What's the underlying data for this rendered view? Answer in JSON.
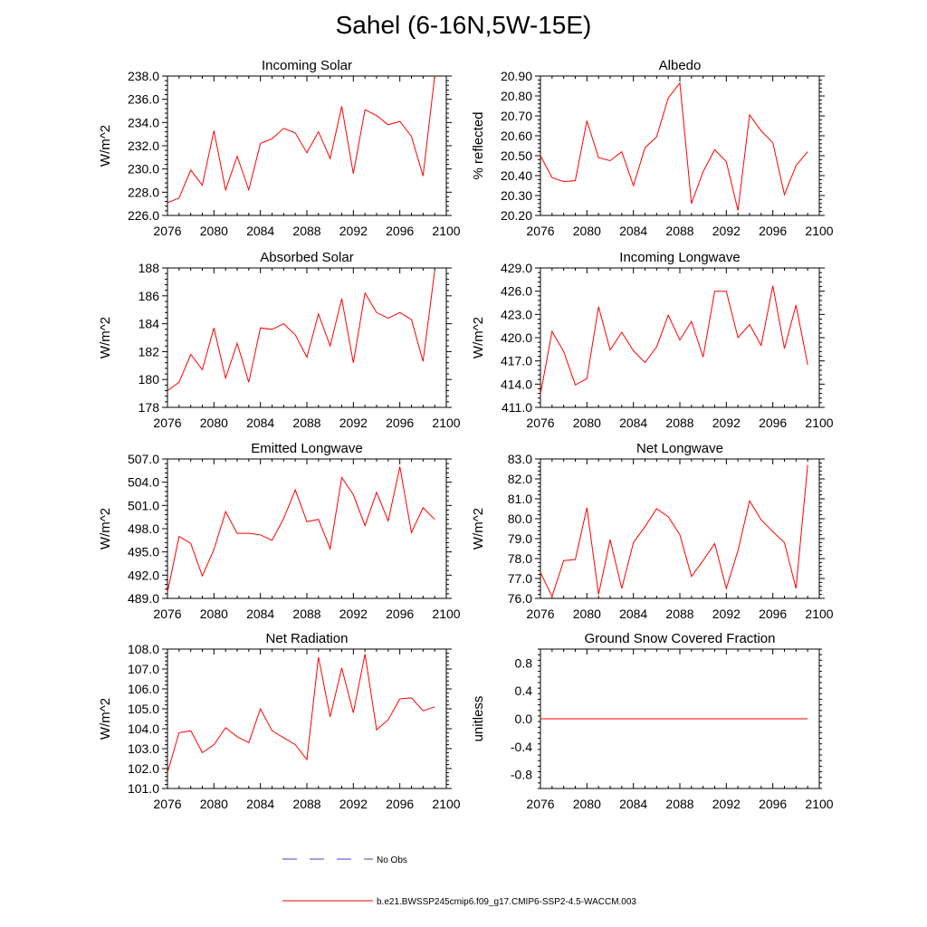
{
  "title": "Sahel (6-16N,5W-15E)",
  "colors": {
    "model_line": "#ff0000",
    "obs_line": "#4040c0",
    "axis": "#000000"
  },
  "legend": {
    "obs_label": "No Obs",
    "model_label": "b.e21.BWSSP245cmip6.f09_g17.CMIP6-SSP2-4.5-WACCM.003"
  },
  "chart_data": [
    {
      "type": "line",
      "title": "Incoming Solar",
      "ylabel": "W/m^2",
      "xlim": [
        2076,
        2100
      ],
      "ylim": [
        226.0,
        238.0
      ],
      "xticks": [
        2076,
        2080,
        2084,
        2088,
        2092,
        2096,
        2100
      ],
      "yticks": [
        226.0,
        228.0,
        230.0,
        232.0,
        234.0,
        236.0,
        238.0
      ],
      "ytick_labels": [
        "226.0",
        "228.0",
        "230.0",
        "232.0",
        "234.0",
        "236.0",
        "238.0"
      ],
      "x": [
        2076,
        2077,
        2078,
        2079,
        2080,
        2081,
        2082,
        2083,
        2084,
        2085,
        2086,
        2087,
        2088,
        2089,
        2090,
        2091,
        2092,
        2093,
        2094,
        2095,
        2096,
        2097,
        2098,
        2099
      ],
      "values": [
        227.1,
        227.5,
        229.9,
        228.6,
        233.3,
        228.2,
        231.1,
        228.2,
        232.2,
        232.6,
        233.5,
        233.1,
        231.4,
        233.2,
        230.9,
        235.4,
        229.6,
        235.1,
        234.6,
        233.8,
        234.1,
        232.8,
        229.4,
        238.0
      ]
    },
    {
      "type": "line",
      "title": "Albedo",
      "ylabel": "% reflected",
      "xlim": [
        2076,
        2100
      ],
      "ylim": [
        20.2,
        20.9
      ],
      "xticks": [
        2076,
        2080,
        2084,
        2088,
        2092,
        2096,
        2100
      ],
      "yticks": [
        20.2,
        20.3,
        20.4,
        20.5,
        20.6,
        20.7,
        20.8,
        20.9
      ],
      "ytick_labels": [
        "20.20",
        "20.30",
        "20.40",
        "20.50",
        "20.60",
        "20.70",
        "20.80",
        "20.90"
      ],
      "x": [
        2076,
        2077,
        2078,
        2079,
        2080,
        2081,
        2082,
        2083,
        2084,
        2085,
        2086,
        2087,
        2088,
        2089,
        2090,
        2091,
        2092,
        2093,
        2094,
        2095,
        2096,
        2097,
        2098,
        2099
      ],
      "values": [
        20.5,
        20.39,
        20.37,
        20.375,
        20.675,
        20.49,
        20.475,
        20.52,
        20.35,
        20.54,
        20.595,
        20.79,
        20.865,
        20.26,
        20.42,
        20.53,
        20.47,
        20.225,
        20.705,
        20.625,
        20.565,
        20.305,
        20.45,
        20.52
      ]
    },
    {
      "type": "line",
      "title": "Absorbed Solar",
      "ylabel": "W/m^2",
      "xlim": [
        2076,
        2100
      ],
      "ylim": [
        178,
        188
      ],
      "xticks": [
        2076,
        2080,
        2084,
        2088,
        2092,
        2096,
        2100
      ],
      "yticks": [
        178,
        180,
        182,
        184,
        186,
        188
      ],
      "ytick_labels": [
        "178",
        "180",
        "182",
        "184",
        "186",
        "188"
      ],
      "x": [
        2076,
        2077,
        2078,
        2079,
        2080,
        2081,
        2082,
        2083,
        2084,
        2085,
        2086,
        2087,
        2088,
        2089,
        2090,
        2091,
        2092,
        2093,
        2094,
        2095,
        2096,
        2097,
        2098,
        2099
      ],
      "values": [
        179.2,
        179.8,
        181.8,
        180.7,
        183.7,
        180.1,
        182.6,
        179.8,
        183.7,
        183.6,
        184.0,
        183.2,
        181.6,
        184.7,
        182.4,
        185.8,
        181.2,
        186.2,
        184.8,
        184.4,
        184.8,
        184.3,
        181.3,
        187.8
      ]
    },
    {
      "type": "line",
      "title": "Incoming Longwave",
      "ylabel": "W/m^2",
      "xlim": [
        2076,
        2100
      ],
      "ylim": [
        411.0,
        429.0
      ],
      "xticks": [
        2076,
        2080,
        2084,
        2088,
        2092,
        2096,
        2100
      ],
      "yticks": [
        411.0,
        414.0,
        417.0,
        420.0,
        423.0,
        426.0,
        429.0
      ],
      "ytick_labels": [
        "411.0",
        "414.0",
        "417.0",
        "420.0",
        "423.0",
        "426.0",
        "429.0"
      ],
      "x": [
        2076,
        2077,
        2078,
        2079,
        2080,
        2081,
        2082,
        2083,
        2084,
        2085,
        2086,
        2087,
        2088,
        2089,
        2090,
        2091,
        2092,
        2093,
        2094,
        2095,
        2096,
        2097,
        2098,
        2099
      ],
      "values": [
        412.7,
        420.8,
        418.2,
        413.9,
        414.7,
        424.0,
        418.4,
        420.7,
        418.3,
        416.8,
        418.8,
        422.9,
        419.7,
        422.1,
        417.5,
        426.0,
        426.0,
        420.0,
        421.7,
        419.0,
        426.7,
        418.6,
        424.2,
        416.5
      ]
    },
    {
      "type": "line",
      "title": "Emitted Longwave",
      "ylabel": "W/m^2",
      "xlim": [
        2076,
        2100
      ],
      "ylim": [
        489.0,
        507.0
      ],
      "xticks": [
        2076,
        2080,
        2084,
        2088,
        2092,
        2096,
        2100
      ],
      "yticks": [
        489.0,
        492.0,
        495.0,
        498.0,
        501.0,
        504.0,
        507.0
      ],
      "ytick_labels": [
        "489.0",
        "492.0",
        "495.0",
        "498.0",
        "501.0",
        "504.0",
        "507.0"
      ],
      "x": [
        2076,
        2077,
        2078,
        2079,
        2080,
        2081,
        2082,
        2083,
        2084,
        2085,
        2086,
        2087,
        2088,
        2089,
        2090,
        2091,
        2092,
        2093,
        2094,
        2095,
        2096,
        2097,
        2098,
        2099
      ],
      "values": [
        489.8,
        497.0,
        496.1,
        491.9,
        495.3,
        500.2,
        497.4,
        497.4,
        497.2,
        496.5,
        499.3,
        503.0,
        498.9,
        499.2,
        495.4,
        504.6,
        502.4,
        498.4,
        502.7,
        499.0,
        506.0,
        497.5,
        500.7,
        499.2
      ]
    },
    {
      "type": "line",
      "title": "Net Longwave",
      "ylabel": "W/m^2",
      "xlim": [
        2076,
        2100
      ],
      "ylim": [
        76.0,
        83.0
      ],
      "xticks": [
        2076,
        2080,
        2084,
        2088,
        2092,
        2096,
        2100
      ],
      "yticks": [
        76.0,
        77.0,
        78.0,
        79.0,
        80.0,
        81.0,
        82.0,
        83.0
      ],
      "ytick_labels": [
        "76.0",
        "77.0",
        "78.0",
        "79.0",
        "80.0",
        "81.0",
        "82.0",
        "83.0"
      ],
      "x": [
        2076,
        2077,
        2078,
        2079,
        2080,
        2081,
        2082,
        2083,
        2084,
        2085,
        2086,
        2087,
        2088,
        2089,
        2090,
        2091,
        2092,
        2093,
        2094,
        2095,
        2096,
        2097,
        2098,
        2099
      ],
      "values": [
        77.3,
        76.1,
        77.9,
        77.95,
        80.55,
        76.2,
        78.95,
        76.5,
        78.8,
        79.6,
        80.5,
        80.1,
        79.2,
        77.1,
        77.9,
        78.75,
        76.5,
        78.4,
        80.9,
        79.95,
        79.35,
        78.8,
        76.5,
        82.7
      ]
    },
    {
      "type": "line",
      "title": "Net Radiation",
      "ylabel": "W/m^2",
      "xlim": [
        2076,
        2100
      ],
      "ylim": [
        101.0,
        108.0
      ],
      "xticks": [
        2076,
        2080,
        2084,
        2088,
        2092,
        2096,
        2100
      ],
      "yticks": [
        101.0,
        102.0,
        103.0,
        104.0,
        105.0,
        106.0,
        107.0,
        108.0
      ],
      "ytick_labels": [
        "101.0",
        "102.0",
        "103.0",
        "104.0",
        "105.0",
        "106.0",
        "107.0",
        "108.0"
      ],
      "x": [
        2076,
        2077,
        2078,
        2079,
        2080,
        2081,
        2082,
        2083,
        2084,
        2085,
        2086,
        2087,
        2088,
        2089,
        2090,
        2091,
        2092,
        2093,
        2094,
        2095,
        2096,
        2097,
        2098,
        2099
      ],
      "values": [
        101.8,
        103.8,
        103.9,
        102.8,
        103.2,
        104.05,
        103.6,
        103.3,
        105.0,
        103.9,
        103.55,
        103.2,
        102.45,
        107.6,
        104.6,
        107.05,
        104.8,
        107.75,
        103.95,
        104.45,
        105.5,
        105.55,
        104.9,
        105.1
      ]
    },
    {
      "type": "line",
      "title": "Ground Snow Covered Fraction",
      "ylabel": "unitless",
      "xlim": [
        2076,
        2100
      ],
      "ylim": [
        -1.0,
        1.0
      ],
      "xticks": [
        2076,
        2080,
        2084,
        2088,
        2092,
        2096,
        2100
      ],
      "yticks": [
        -0.8,
        -0.4,
        0.0,
        0.4,
        0.8
      ],
      "ytick_labels": [
        "-0.8",
        "-0.4",
        "0.0",
        "0.4",
        "0.8"
      ],
      "x": [
        2076,
        2077,
        2078,
        2079,
        2080,
        2081,
        2082,
        2083,
        2084,
        2085,
        2086,
        2087,
        2088,
        2089,
        2090,
        2091,
        2092,
        2093,
        2094,
        2095,
        2096,
        2097,
        2098,
        2099
      ],
      "values": [
        0,
        0,
        0,
        0,
        0,
        0,
        0,
        0,
        0,
        0,
        0,
        0,
        0,
        0,
        0,
        0,
        0,
        0,
        0,
        0,
        0,
        0,
        0,
        0
      ]
    }
  ]
}
